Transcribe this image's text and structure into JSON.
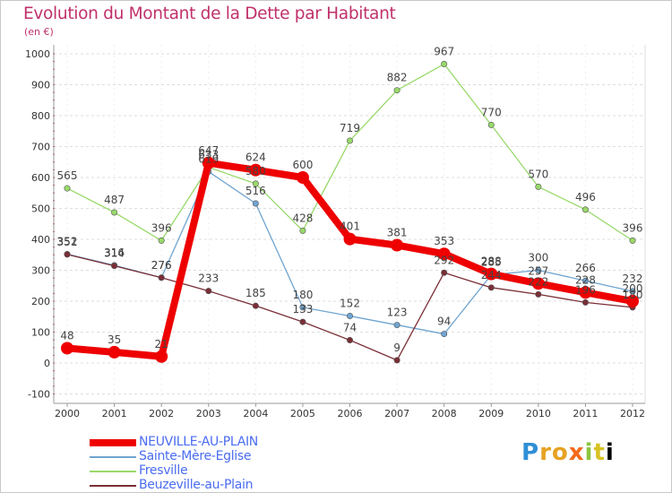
{
  "header": {
    "title": "Evolution du Montant de la Dette par Habitant",
    "unit": "(en €)"
  },
  "brand": {
    "letters": [
      "P",
      "r",
      "o",
      "x",
      "i",
      "t",
      "i"
    ]
  },
  "colors": {
    "title": "#c0306a",
    "axis_labels": "#333333",
    "legend_text": "#4a6cf0",
    "grid": "#dddddd"
  },
  "chart_data": {
    "type": "line",
    "title": "Evolution du Montant de la Dette par Habitant",
    "subtitle": "(en €)",
    "xlabel": "",
    "ylabel": "",
    "x": [
      "2000",
      "2001",
      "2002",
      "2003",
      "2004",
      "2005",
      "2006",
      "2007",
      "2008",
      "2009",
      "2010",
      "2011",
      "2012"
    ],
    "yticks": [
      "1000",
      "900",
      "800",
      "700",
      "600",
      "500",
      "400",
      "300",
      "200",
      "100",
      "0",
      "-100"
    ],
    "ylim": [
      -100,
      1000
    ],
    "grid": "horizontal dashed",
    "legend_position": "bottom-left",
    "series": [
      {
        "name": "NEUVILLE-AU-PLAIN",
        "color": "#ee0000",
        "emphasis": true,
        "values": [
          48,
          35,
          21,
          647,
          624,
          600,
          401,
          381,
          353,
          288,
          257,
          228,
          200
        ],
        "labels": [
          "48",
          "35",
          "21",
          "647",
          "624",
          "600",
          "401",
          "381",
          "353",
          "288",
          "257",
          "228",
          "200"
        ]
      },
      {
        "name": "Sainte-Mère-Eglise",
        "color": "#6fa4d0",
        "values": [
          352,
          316,
          276,
          619,
          516,
          180,
          152,
          123,
          94,
          285,
          300,
          266,
          232
        ],
        "labels": [
          "352",
          "316",
          "276",
          "619",
          "516",
          "180",
          "152",
          "123",
          "94",
          "285",
          "300",
          "266",
          "232"
        ]
      },
      {
        "name": "Fresville",
        "color": "#99d96a",
        "values": [
          565,
          487,
          396,
          633,
          580,
          428,
          719,
          882,
          967,
          770,
          570,
          496,
          396
        ],
        "labels": [
          "565",
          "487",
          "396",
          "633",
          "580",
          "428",
          "719",
          "882",
          "967",
          "770",
          "570",
          "496",
          "396"
        ]
      },
      {
        "name": "Beuzeville-au-Plain",
        "color": "#7a2e36",
        "values": [
          351,
          314,
          276,
          233,
          185,
          133,
          74,
          9,
          292,
          244,
          222,
          196,
          180
        ],
        "labels": [
          "351",
          "314",
          "276",
          "233",
          "185",
          "133",
          "74",
          "9",
          "292",
          "244",
          "222",
          "196",
          "180"
        ]
      }
    ]
  }
}
